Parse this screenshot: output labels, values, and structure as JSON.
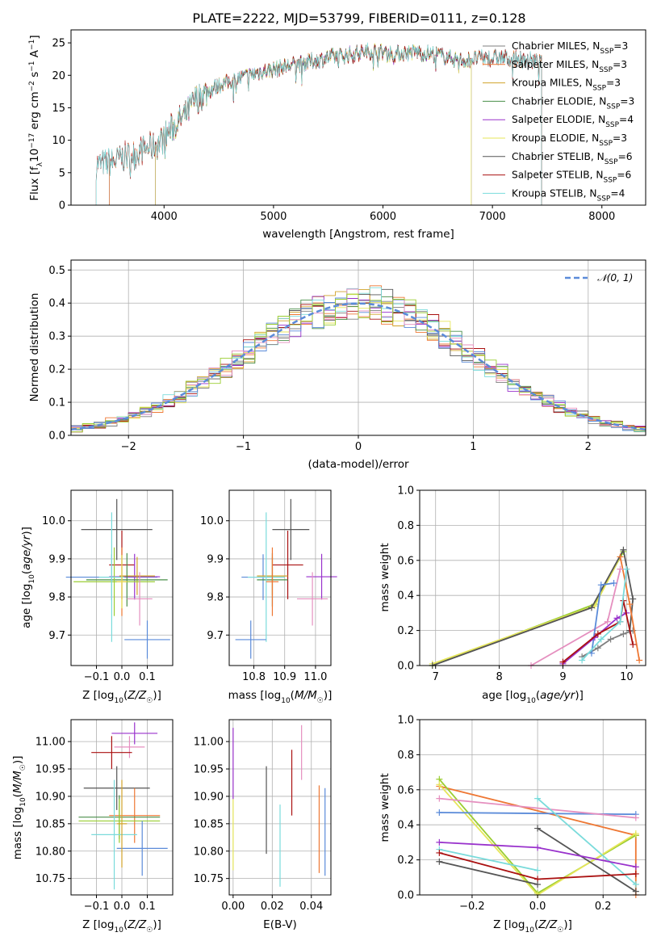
{
  "figure": {
    "title": "PLATE=2222, MJD=53799, FIBERID=0111, z=0.128",
    "model_colors": [
      "#7f7f7f",
      "#ee7733",
      "#d1a32a",
      "#4a8f4a",
      "#9932cc",
      "#e6e65a",
      "#555555",
      "#aa1111",
      "#7adbdb",
      "#5b8bd9",
      "#e58fbf",
      "#9acd32"
    ]
  },
  "chart_data": [
    {
      "id": "spectrum",
      "type": "line",
      "xlabel": "wavelength [Angstrom, rest frame]",
      "ylabel": "Flux [f_λ 10^-17 erg cm^-2 s^-1 A^-1]",
      "xlim": [
        3150,
        8400
      ],
      "ylim": [
        0,
        27
      ],
      "xticks": [
        4000,
        5000,
        6000,
        7000,
        8000
      ],
      "yticks": [
        0,
        5,
        10,
        15,
        20,
        25
      ],
      "legend_position": "right",
      "series": [
        {
          "name": "Chabrier MILES, N_SSP=3",
          "color": "#7f7f7f"
        },
        {
          "name": "Salpeter MILES, N_SSP=3",
          "color": "#ee7733"
        },
        {
          "name": "Kroupa MILES, N_SSP=3",
          "color": "#d1a32a"
        },
        {
          "name": "Chabrier ELODIE, N_SSP=3",
          "color": "#4a8f4a"
        },
        {
          "name": "Salpeter ELODIE, N_SSP=4",
          "color": "#9932cc"
        },
        {
          "name": "Kroupa ELODIE, N_SSP=3",
          "color": "#e6e65a"
        },
        {
          "name": "Chabrier STELIB, N_SSP=6",
          "color": "#555555"
        },
        {
          "name": "Salpeter STELIB, N_SSP=6",
          "color": "#aa1111"
        },
        {
          "name": "Kroupa STELIB, N_SSP=4",
          "color": "#7adbdb"
        }
      ],
      "continuum_x": [
        3380,
        3500,
        3700,
        3850,
        3950,
        4050,
        4200,
        4300,
        4500,
        4700,
        4900,
        5100,
        5300,
        5500,
        5700,
        5900,
        6100,
        6300,
        6500,
        6700,
        6900,
        7100,
        7300,
        7450
      ],
      "continuum_y": [
        6.2,
        6.5,
        7.8,
        8.8,
        9.5,
        11.5,
        14,
        16.5,
        18.5,
        19.6,
        20.6,
        21.3,
        22,
        22.7,
        23.2,
        23.8,
        23.3,
        23.6,
        23.2,
        22.3,
        22.6,
        22.7,
        22.4,
        22.1
      ],
      "model_spans": [
        [
          3500,
          7450
        ],
        [
          3500,
          7450
        ],
        [
          3920,
          6810
        ],
        [
          3920,
          6810
        ],
        [
          3920,
          6810
        ],
        [
          3920,
          6810
        ],
        [
          3380,
          7450
        ],
        [
          3380,
          7450
        ],
        [
          3380,
          7450
        ]
      ]
    },
    {
      "id": "residuals",
      "type": "histogram",
      "xlabel": "(data-model)/error",
      "ylabel": "Normed distribution",
      "xlim": [
        -2.5,
        2.5
      ],
      "ylim": [
        0,
        0.53
      ],
      "xticks": [
        -2,
        -1,
        0,
        1,
        2
      ],
      "yticks": [
        0.0,
        0.1,
        0.2,
        0.3,
        0.4,
        0.5
      ],
      "bin_width": 0.1,
      "legend": [
        {
          "name": "𝒩(0, 1)",
          "color": "#5b8bd9",
          "style": "dashed"
        }
      ]
    },
    {
      "id": "z_age",
      "type": "errorbar",
      "xlabel": "Z [log10(Z/Z☉)]",
      "ylabel": "age [log10(age/yr)]",
      "xlim": [
        -0.2,
        0.2
      ],
      "ylim": [
        9.62,
        10.08
      ],
      "xticks": [
        -0.1,
        0.0,
        0.1
      ],
      "yticks": [
        9.7,
        9.8,
        9.9,
        10.0
      ],
      "points": [
        {
          "x": -0.02,
          "y": 9.977,
          "xerr": 0.14,
          "yerr": 0.08,
          "color": "#555555"
        },
        {
          "x": 0.0,
          "y": 9.884,
          "xerr": 0.05,
          "yerr": 0.09,
          "color": "#aa1111"
        },
        {
          "x": -0.04,
          "y": 9.852,
          "xerr": 0.18,
          "yerr": 0.06,
          "color": "#5b8bd9"
        },
        {
          "x": 0.05,
          "y": 9.853,
          "xerr": 0.1,
          "yerr": 0.06,
          "color": "#9932cc"
        },
        {
          "x": 0.06,
          "y": 9.855,
          "xerr": 0.07,
          "yerr": 0.05,
          "color": "#d1a32a"
        },
        {
          "x": 0.02,
          "y": 9.845,
          "xerr": 0.16,
          "yerr": 0.07,
          "color": "#4a8f4a"
        },
        {
          "x": -0.03,
          "y": 9.84,
          "xerr": 0.16,
          "yerr": 0.09,
          "color": "#9acd32"
        },
        {
          "x": -0.04,
          "y": 9.852,
          "xerr": 0.05,
          "yerr": 0.17,
          "color": "#7adbdb"
        },
        {
          "x": 0.0,
          "y": 9.84,
          "xerr": 0.02,
          "yerr": 0.09,
          "color": "#ee7733"
        },
        {
          "x": 0.0,
          "y": 9.84,
          "xerr": 0.02,
          "yerr": 0.07,
          "color": "#e6e65a"
        },
        {
          "x": 0.07,
          "y": 9.795,
          "xerr": 0.05,
          "yerr": 0.07,
          "color": "#e58fbf"
        },
        {
          "x": 0.1,
          "y": 9.688,
          "xerr": 0.09,
          "yerr": 0.05,
          "color": "#5b8bd9"
        }
      ]
    },
    {
      "id": "mass_age",
      "type": "errorbar",
      "xlabel": "mass [log10(M/M☉)]",
      "ylabel": "",
      "xlim": [
        10.72,
        11.05
      ],
      "ylim": [
        9.62,
        10.08
      ],
      "xticks": [
        10.8,
        10.9,
        11.0
      ],
      "yticks": [
        9.7,
        9.8,
        9.9,
        10.0
      ],
      "points": [
        {
          "x": 10.92,
          "y": 9.977,
          "xerr": 0.06,
          "yerr": 0.08,
          "color": "#555555"
        },
        {
          "x": 10.91,
          "y": 9.884,
          "xerr": 0.05,
          "yerr": 0.09,
          "color": "#aa1111"
        },
        {
          "x": 10.83,
          "y": 9.852,
          "xerr": 0.07,
          "yerr": 0.06,
          "color": "#5b8bd9"
        },
        {
          "x": 11.02,
          "y": 9.853,
          "xerr": 0.05,
          "yerr": 0.06,
          "color": "#9932cc"
        },
        {
          "x": 10.86,
          "y": 9.855,
          "xerr": 0.05,
          "yerr": 0.05,
          "color": "#d1a32a"
        },
        {
          "x": 10.86,
          "y": 9.845,
          "xerr": 0.05,
          "yerr": 0.07,
          "color": "#4a8f4a"
        },
        {
          "x": 10.84,
          "y": 9.852,
          "xerr": 0.06,
          "yerr": 0.17,
          "color": "#7adbdb"
        },
        {
          "x": 10.86,
          "y": 9.84,
          "xerr": 0.02,
          "yerr": 0.09,
          "color": "#ee7733"
        },
        {
          "x": 10.99,
          "y": 9.795,
          "xerr": 0.05,
          "yerr": 0.07,
          "color": "#e58fbf"
        },
        {
          "x": 10.79,
          "y": 9.688,
          "xerr": 0.05,
          "yerr": 0.05,
          "color": "#5b8bd9"
        }
      ]
    },
    {
      "id": "age_weight",
      "type": "line",
      "xlabel": "age [log10(age/yr)]",
      "ylabel": "mass weight",
      "xlim": [
        6.75,
        10.3
      ],
      "ylim": [
        0,
        1.0
      ],
      "xticks": [
        7,
        8,
        9,
        10
      ],
      "yticks": [
        0.0,
        0.2,
        0.4,
        0.6,
        0.8,
        1.0
      ],
      "series": [
        {
          "color": "#9acd32",
          "x": [
            6.95,
            9.5,
            9.95
          ],
          "y": [
            0.0,
            0.35,
            0.65
          ]
        },
        {
          "color": "#e6e65a",
          "x": [
            6.95,
            9.5,
            9.9
          ],
          "y": [
            0.01,
            0.34,
            0.62
          ]
        },
        {
          "color": "#555555",
          "x": [
            6.95,
            9.45,
            9.95,
            10.1,
            10.05
          ],
          "y": [
            0.0,
            0.33,
            0.66,
            0.38,
            0.2
          ]
        },
        {
          "color": "#7f7f7f",
          "x": [
            9.3,
            9.55,
            9.75,
            9.95,
            10.1
          ],
          "y": [
            0.05,
            0.1,
            0.15,
            0.18,
            0.2
          ]
        },
        {
          "color": "#ee7733",
          "x": [
            9.9,
            10.05,
            10.2
          ],
          "y": [
            0.62,
            0.35,
            0.03
          ]
        },
        {
          "color": "#e58fbf",
          "x": [
            8.5,
            9.7,
            9.9
          ],
          "y": [
            0.0,
            0.25,
            0.55
          ]
        },
        {
          "color": "#5b8bd9",
          "x": [
            9.45,
            9.6,
            9.8
          ],
          "y": [
            0.07,
            0.46,
            0.47
          ]
        },
        {
          "color": "#9932cc",
          "x": [
            9.0,
            9.5,
            9.85,
            10.0
          ],
          "y": [
            0.01,
            0.16,
            0.27,
            0.3
          ]
        },
        {
          "color": "#aa1111",
          "x": [
            9.0,
            9.55,
            9.9,
            9.95,
            10.1
          ],
          "y": [
            0.02,
            0.18,
            0.25,
            0.37,
            0.12
          ]
        },
        {
          "color": "#7adbdb",
          "x": [
            9.3,
            9.6,
            9.9,
            10.0
          ],
          "y": [
            0.03,
            0.15,
            0.25,
            0.55
          ]
        }
      ]
    },
    {
      "id": "z_mass",
      "type": "errorbar",
      "xlabel": "Z [log10(Z/Z☉)]",
      "ylabel": "mass [log10(M/M☉)]",
      "xlim": [
        -0.2,
        0.2
      ],
      "ylim": [
        10.72,
        11.04
      ],
      "xticks": [
        -0.1,
        0.0,
        0.1
      ],
      "yticks": [
        10.75,
        10.8,
        10.85,
        10.9,
        10.95,
        11.0
      ],
      "points": [
        {
          "x": 0.05,
          "y": 11.015,
          "xerr": 0.09,
          "yerr": 0.02,
          "color": "#9932cc"
        },
        {
          "x": 0.03,
          "y": 10.99,
          "xerr": 0.06,
          "yerr": 0.02,
          "color": "#e58fbf"
        },
        {
          "x": -0.04,
          "y": 10.98,
          "xerr": 0.08,
          "yerr": 0.03,
          "color": "#aa1111"
        },
        {
          "x": -0.02,
          "y": 10.915,
          "xerr": 0.13,
          "yerr": 0.04,
          "color": "#555555"
        },
        {
          "x": 0.05,
          "y": 10.865,
          "xerr": 0.1,
          "yerr": 0.05,
          "color": "#ee7733"
        },
        {
          "x": -0.01,
          "y": 10.862,
          "xerr": 0.16,
          "yerr": 0.04,
          "color": "#4a8f4a"
        },
        {
          "x": -0.01,
          "y": 10.855,
          "xerr": 0.16,
          "yerr": 0.04,
          "color": "#9acd32"
        },
        {
          "x": -0.03,
          "y": 10.83,
          "xerr": 0.09,
          "yerr": 0.1,
          "color": "#7adbdb"
        },
        {
          "x": 0.08,
          "y": 10.805,
          "xerr": 0.1,
          "yerr": 0.05,
          "color": "#5b8bd9"
        },
        {
          "x": 0.0,
          "y": 10.85,
          "xerr": 0.02,
          "yerr": 0.08,
          "color": "#d1a32a"
        }
      ]
    },
    {
      "id": "ebv_mass",
      "type": "errorbar",
      "xlabel": "E(B-V)",
      "ylabel": "",
      "xlim": [
        -0.002,
        0.05
      ],
      "ylim": [
        10.72,
        11.04
      ],
      "xticks": [
        0.0,
        0.02,
        0.04
      ],
      "yticks": [
        10.75,
        10.8,
        10.85,
        10.9,
        10.95,
        11.0
      ],
      "points": [
        {
          "x": 0.0,
          "y": 10.96,
          "yerr": 0.065,
          "color": "#9932cc"
        },
        {
          "x": 0.0,
          "y": 10.83,
          "yerr": 0.065,
          "color": "#e6e65a"
        },
        {
          "x": 0.017,
          "y": 10.875,
          "yerr": 0.08,
          "color": "#555555"
        },
        {
          "x": 0.024,
          "y": 10.81,
          "yerr": 0.075,
          "color": "#7adbdb"
        },
        {
          "x": 0.03,
          "y": 10.925,
          "yerr": 0.06,
          "color": "#aa1111"
        },
        {
          "x": 0.035,
          "y": 10.98,
          "yerr": 0.05,
          "color": "#e58fbf"
        },
        {
          "x": 0.044,
          "y": 10.84,
          "yerr": 0.08,
          "color": "#ee7733"
        },
        {
          "x": 0.047,
          "y": 10.835,
          "yerr": 0.08,
          "color": "#5b8bd9"
        }
      ]
    },
    {
      "id": "z_weight",
      "type": "line",
      "xlabel": "Z [log10(Z/Z☉)]",
      "ylabel": "mass weight",
      "xlim": [
        -0.36,
        0.33
      ],
      "ylim": [
        0,
        1.0
      ],
      "xticks": [
        -0.2,
        0.0,
        0.2
      ],
      "yticks": [
        0.0,
        0.2,
        0.4,
        0.6,
        0.8,
        1.0
      ],
      "series": [
        {
          "color": "#ee7733",
          "x": [
            -0.3,
            0.3,
            0.3
          ],
          "y": [
            0.62,
            0.34,
            0.0
          ]
        },
        {
          "color": "#9acd32",
          "x": [
            -0.3,
            0.0,
            0.3
          ],
          "y": [
            0.66,
            0.01,
            0.34
          ]
        },
        {
          "color": "#e6e65a",
          "x": [
            -0.3,
            0.0,
            0.3
          ],
          "y": [
            0.63,
            0.0,
            0.35
          ]
        },
        {
          "color": "#5b8bd9",
          "x": [
            -0.3,
            0.3
          ],
          "y": [
            0.47,
            0.46
          ]
        },
        {
          "color": "#e58fbf",
          "x": [
            -0.3,
            0.3
          ],
          "y": [
            0.55,
            0.44
          ]
        },
        {
          "color": "#555555",
          "x": [
            0.0,
            0.3
          ],
          "y": [
            0.38,
            0.02
          ]
        },
        {
          "color": "#7adbdb",
          "x": [
            0.0,
            0.3
          ],
          "y": [
            0.55,
            0.06
          ]
        },
        {
          "color": "#9932cc",
          "x": [
            -0.3,
            0.0,
            0.3
          ],
          "y": [
            0.3,
            0.27,
            0.16
          ]
        },
        {
          "color": "#7adbdb",
          "x": [
            -0.3,
            0.0
          ],
          "y": [
            0.26,
            0.14
          ]
        },
        {
          "color": "#aa1111",
          "x": [
            -0.3,
            0.0,
            0.3
          ],
          "y": [
            0.24,
            0.09,
            0.12
          ]
        },
        {
          "color": "#555555",
          "x": [
            -0.3,
            0.0
          ],
          "y": [
            0.19,
            0.06
          ]
        }
      ]
    }
  ]
}
